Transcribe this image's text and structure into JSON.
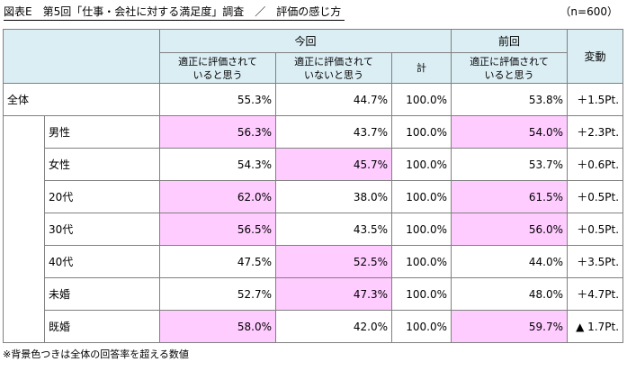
{
  "title": "図表E　第5回「仕事・会社に対する満足度」調査　／　評価の感じ方",
  "sample": "（n=600）",
  "headers": {
    "current": "今回",
    "previous": "前回",
    "change": "変動",
    "col_evaluated": "適正に評価されていると思う",
    "col_not_evaluated": "適正に評価されていないと思う",
    "col_total": "計",
    "col_prev_evaluated": "適正に評価されていると思う"
  },
  "rows": [
    {
      "label": "全体",
      "evaluated": "55.3%",
      "not_evaluated": "44.7%",
      "total": "100.0%",
      "prev": "53.8%",
      "change": "＋1.5Pt.",
      "hl": {
        "evaluated": false,
        "not_evaluated": false,
        "prev": false
      }
    },
    {
      "label": "男性",
      "evaluated": "56.3%",
      "not_evaluated": "43.7%",
      "total": "100.0%",
      "prev": "54.0%",
      "change": "＋2.3Pt.",
      "hl": {
        "evaluated": true,
        "not_evaluated": false,
        "prev": true
      }
    },
    {
      "label": "女性",
      "evaluated": "54.3%",
      "not_evaluated": "45.7%",
      "total": "100.0%",
      "prev": "53.7%",
      "change": "＋0.6Pt.",
      "hl": {
        "evaluated": false,
        "not_evaluated": true,
        "prev": false
      }
    },
    {
      "label": "20代",
      "evaluated": "62.0%",
      "not_evaluated": "38.0%",
      "total": "100.0%",
      "prev": "61.5%",
      "change": "＋0.5Pt.",
      "hl": {
        "evaluated": true,
        "not_evaluated": false,
        "prev": true
      }
    },
    {
      "label": "30代",
      "evaluated": "56.5%",
      "not_evaluated": "43.5%",
      "total": "100.0%",
      "prev": "56.0%",
      "change": "＋0.5Pt.",
      "hl": {
        "evaluated": true,
        "not_evaluated": false,
        "prev": true
      }
    },
    {
      "label": "40代",
      "evaluated": "47.5%",
      "not_evaluated": "52.5%",
      "total": "100.0%",
      "prev": "44.0%",
      "change": "＋3.5Pt.",
      "hl": {
        "evaluated": false,
        "not_evaluated": true,
        "prev": false
      }
    },
    {
      "label": "未婚",
      "evaluated": "52.7%",
      "not_evaluated": "47.3%",
      "total": "100.0%",
      "prev": "48.0%",
      "change": "＋4.7Pt.",
      "hl": {
        "evaluated": false,
        "not_evaluated": true,
        "prev": false
      }
    },
    {
      "label": "既婚",
      "evaluated": "58.0%",
      "not_evaluated": "42.0%",
      "total": "100.0%",
      "prev": "59.7%",
      "change": "▲ 1.7Pt.",
      "hl": {
        "evaluated": true,
        "not_evaluated": false,
        "prev": true
      }
    }
  ],
  "note": "※背景色つきは全体の回答率を超える数値",
  "colors": {
    "header_bg": "#dbeef4",
    "highlight": "#ffccff",
    "border": "#808080"
  }
}
